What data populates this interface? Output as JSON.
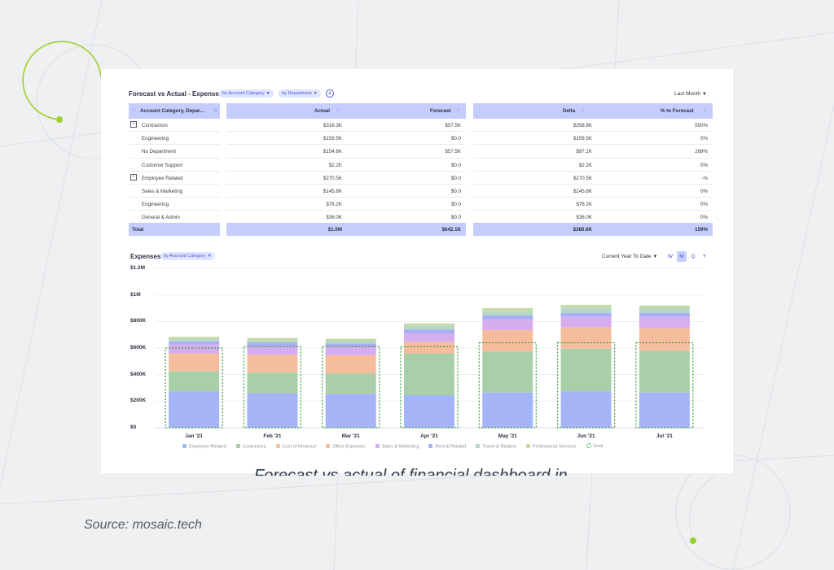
{
  "forecast_table": {
    "title": "Forecast vs Actual - Expenses",
    "filter_chips": [
      "by Account Category",
      "by Department"
    ],
    "period_selector": "Last Month",
    "columns": [
      "Account Category, Depar...",
      "Actual",
      "Forecast",
      "Delta",
      "% to Forecast"
    ],
    "rows": [
      {
        "label": "Contractors",
        "group": true,
        "actual": "$316.3K",
        "forecast": "$57.5K",
        "delta": "$258.8K",
        "pct": "550%"
      },
      {
        "label": "Engineering",
        "group": false,
        "actual": "$159.5K",
        "forecast": "$0.0",
        "delta": "$159.5K",
        "pct": "0%"
      },
      {
        "label": "No Department",
        "group": false,
        "actual": "$154.6K",
        "forecast": "$57.5K",
        "delta": "$97.1K",
        "pct": "269%"
      },
      {
        "label": "Customer Support",
        "group": false,
        "actual": "$2.2K",
        "forecast": "$0.0",
        "delta": "$2.2K",
        "pct": "0%"
      },
      {
        "label": "Employee Related",
        "group": true,
        "actual": "$270.5K",
        "forecast": "$0.0",
        "delta": "$270.5K",
        "pct": "-%"
      },
      {
        "label": "Sales & Marketing",
        "group": false,
        "actual": "$145.8K",
        "forecast": "$0.0",
        "delta": "$145.8K",
        "pct": "0%"
      },
      {
        "label": "Engineering",
        "group": false,
        "actual": "$76.2K",
        "forecast": "$0.0",
        "delta": "$76.2K",
        "pct": "0%"
      },
      {
        "label": "General & Admin",
        "group": false,
        "actual": "$36.0K",
        "forecast": "$0.0",
        "delta": "$36.0K",
        "pct": "0%"
      }
    ],
    "total": {
      "label": "Total",
      "actual": "$1.0M",
      "forecast": "$642.1K",
      "delta": "$380.6K",
      "pct": "159%"
    }
  },
  "expenses_panel": {
    "title": "Expenses",
    "filter_chip": "by Account Category",
    "period_selector": "Current Year To Date",
    "granularity_toggles": [
      "W",
      "M",
      "Q",
      "Y"
    ],
    "active_toggle": "M"
  },
  "chart_data": {
    "type": "bar",
    "stacked": true,
    "categories": [
      "Jan '21",
      "Feb '21",
      "Mar '21",
      "Apr '21",
      "May '21",
      "Jun '21",
      "Jul '21"
    ],
    "y_tick_labels": [
      "$0",
      "$200K",
      "$400K",
      "$600K",
      "$800K",
      "$1M",
      "$1.2M"
    ],
    "ylim": [
      0,
      1200000
    ],
    "grid": true,
    "legend_position": "bottom",
    "series": [
      {
        "name": "Employee Related",
        "color": "#a4b4f7",
        "values": [
          275000,
          260000,
          255000,
          245000,
          265000,
          275000,
          265000
        ]
      },
      {
        "name": "Contractors",
        "color": "#a9cfa9",
        "values": [
          150000,
          155000,
          155000,
          315000,
          310000,
          320000,
          315000
        ]
      },
      {
        "name": "Cost of Revenue",
        "color": "#f2c4a4",
        "values": [
          0,
          0,
          0,
          0,
          0,
          0,
          0
        ]
      },
      {
        "name": "Office Expenses",
        "color": "#f6bd9d",
        "values": [
          135000,
          135000,
          135000,
          85000,
          160000,
          160000,
          170000
        ]
      },
      {
        "name": "Sales & Marketing",
        "color": "#d6aef0",
        "values": [
          65000,
          65000,
          65000,
          65000,
          80000,
          80000,
          85000
        ]
      },
      {
        "name": "Rent & Related",
        "color": "#a9aff5",
        "values": [
          25000,
          25000,
          25000,
          30000,
          30000,
          30000,
          30000
        ]
      },
      {
        "name": "Travel & Related",
        "color": "#b5d8c6",
        "values": [
          20000,
          20000,
          20000,
          30000,
          35000,
          40000,
          35000
        ]
      },
      {
        "name": "Professional Services",
        "color": "#c9d9a4",
        "values": [
          15000,
          15000,
          15000,
          15000,
          20000,
          20000,
          20000
        ]
      }
    ],
    "goal": {
      "name": "Goal",
      "color": "#3d9a3d",
      "values": [
        600000,
        610000,
        610000,
        610000,
        640000,
        640000,
        640000
      ]
    }
  },
  "page": {
    "caption": "Forecast vs actual of financial dashboard in Mosaic",
    "source": "Source: mosaic.tech"
  }
}
